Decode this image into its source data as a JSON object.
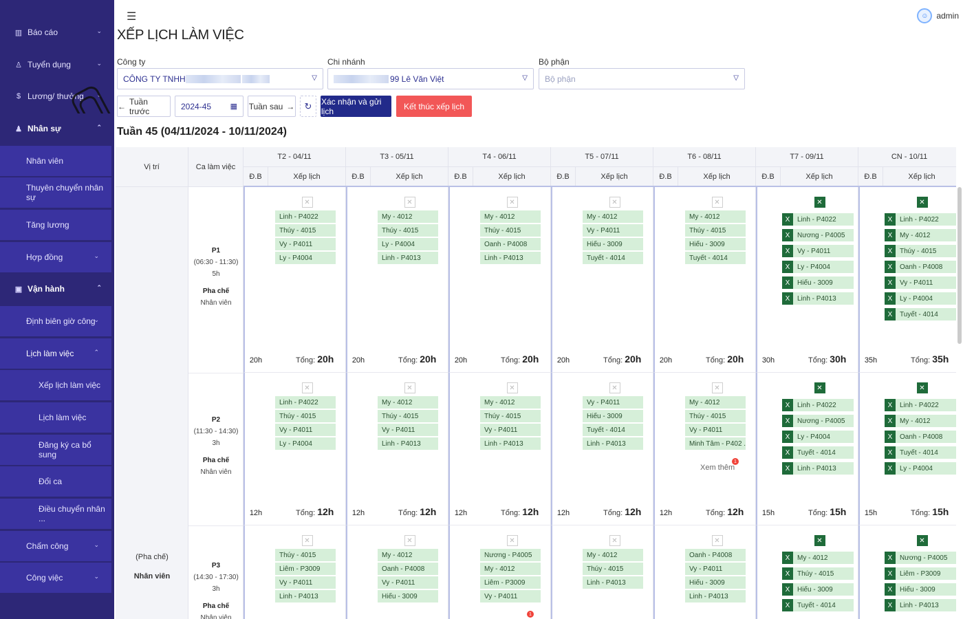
{
  "sidebar": {
    "items": [
      {
        "label": "Báo cáo",
        "icon": "chart-icon",
        "chev": "⌄"
      },
      {
        "label": "Tuyển dụng",
        "icon": "users-icon",
        "chev": "⌄"
      },
      {
        "label": "Lương/ thưởng",
        "icon": "money-icon",
        "chev": "⌄"
      },
      {
        "label": "Nhân sự",
        "icon": "user-icon",
        "chev": "⌃"
      },
      {
        "label": "Nhân viên"
      },
      {
        "label": "Thuyên chuyển nhân sự"
      },
      {
        "label": "Tăng lương"
      },
      {
        "label": "Hợp đồng",
        "chev": "⌄"
      },
      {
        "label": "Vận hành",
        "icon": "calendar-icon",
        "chev": "⌃"
      },
      {
        "label": "Định biên giờ công",
        "chev": "⌄"
      },
      {
        "label": "Lịch làm việc",
        "chev": "⌃"
      },
      {
        "label": "Xếp lịch làm việc"
      },
      {
        "label": "Lịch làm việc"
      },
      {
        "label": "Đăng ký ca bổ sung"
      },
      {
        "label": "Đổi ca"
      },
      {
        "label": "Điều chuyển nhân ..."
      },
      {
        "label": "Chấm công",
        "chev": "⌄"
      },
      {
        "label": "Công việc",
        "chev": "⌄"
      }
    ]
  },
  "header": {
    "menu_icon": "menu-fold-icon",
    "title": "XẾP LỊCH LÀM VIỆC",
    "user": "admin"
  },
  "filters": {
    "company_label": "Công ty",
    "company_value": "CÔNG TY TNHH",
    "branch_label": "Chi nhánh",
    "branch_value": "99 Lê Văn Việt",
    "dept_label": "Bộ phận",
    "dept_placeholder": "Bộ phận"
  },
  "toolbar": {
    "prev": "Tuần trước",
    "week": "2024-45",
    "next": "Tuần sau",
    "confirm": "Xác nhận và gửi lịch",
    "end": "Kết thúc xếp lịch"
  },
  "week_title": "Tuần 45 (04/11/2024 - 10/11/2024)",
  "table": {
    "col_position": "Vị trí",
    "col_shift": "Ca làm việc",
    "sub_db": "Đ.B",
    "sub_schedule": "Xếp lịch",
    "total_label": "Tổng:",
    "more_label": "Xem thêm",
    "more_badge": "1",
    "days": [
      "T2 - 04/11",
      "T3 - 05/11",
      "T4 - 06/11",
      "T5 - 07/11",
      "T6 - 08/11",
      "T7 - 09/11",
      "CN - 10/11"
    ],
    "position": {
      "line1": "(Pha chế)",
      "line2": "Nhân viên"
    }
  },
  "shifts": [
    {
      "code": "P1",
      "time": "(06:30 - 11:30)",
      "hours": "5h",
      "role": "Pha chế",
      "level": "Nhân viên",
      "days": [
        {
          "db": "20h",
          "total": "20h",
          "assigns": [
            "Linh - P4022",
            "Thúy - 4015",
            "Vy - P4011",
            "Ly - P4004"
          ]
        },
        {
          "db": "20h",
          "total": "20h",
          "assigns": [
            "My - 4012",
            "Thúy - 4015",
            "Ly - P4004",
            "Linh - P4013"
          ]
        },
        {
          "db": "20h",
          "total": "20h",
          "assigns": [
            "My - 4012",
            "Thúy - 4015",
            "Oanh - P4008",
            "Linh - P4013"
          ]
        },
        {
          "db": "20h",
          "total": "20h",
          "assigns": [
            "My - 4012",
            "Vy - P4011",
            "Hiếu - 3009",
            "Tuyết - 4014"
          ]
        },
        {
          "db": "20h",
          "total": "20h",
          "assigns": [
            "My - 4012",
            "Thúy - 4015",
            "Hiếu - 3009",
            "Tuyết - 4014"
          ]
        },
        {
          "db": "30h",
          "total": "30h",
          "assigns": [
            "Linh - P4022",
            "Nương - P4005",
            "Vy - P4011",
            "Ly - P4004",
            "Hiếu - 3009",
            "Linh - P4013"
          ]
        },
        {
          "db": "35h",
          "total": "35h",
          "assigns": [
            "Linh - P4022",
            "My - 4012",
            "Thúy - 4015",
            "Oanh - P4008",
            "Vy - P4011",
            "Ly - P4004",
            "Tuyết - 4014"
          ]
        }
      ]
    },
    {
      "code": "P2",
      "time": "(11:30 - 14:30)",
      "hours": "3h",
      "role": "Pha chế",
      "level": "Nhân viên",
      "days": [
        {
          "db": "12h",
          "total": "12h",
          "assigns": [
            "Linh - P4022",
            "Thúy - 4015",
            "Vy - P4011",
            "Ly - P4004"
          ]
        },
        {
          "db": "12h",
          "total": "12h",
          "assigns": [
            "My - 4012",
            "Thúy - 4015",
            "Vy - P4011",
            "Linh - P4013"
          ]
        },
        {
          "db": "12h",
          "total": "12h",
          "assigns": [
            "My - 4012",
            "Thúy - 4015",
            "Vy - P4011",
            "Linh - P4013"
          ]
        },
        {
          "db": "12h",
          "total": "12h",
          "assigns": [
            "Vy - P4011",
            "Hiếu - 3009",
            "Tuyết - 4014",
            "Linh - P4013"
          ]
        },
        {
          "db": "12h",
          "total": "12h",
          "assigns": [
            "My - 4012",
            "Thúy - 4015",
            "Vy - P4011",
            "Minh Tâm - P402 ..."
          ],
          "more": true
        },
        {
          "db": "15h",
          "total": "15h",
          "assigns": [
            "Linh - P4022",
            "Nương - P4005",
            "Ly - P4004",
            "Tuyết - 4014",
            "Linh - P4013"
          ]
        },
        {
          "db": "15h",
          "total": "15h",
          "assigns": [
            "Linh - P4022",
            "My - 4012",
            "Oanh - P4008",
            "Tuyết - 4014",
            "Ly - P4004"
          ]
        }
      ]
    },
    {
      "code": "P3",
      "time": "(14:30 - 17:30)",
      "hours": "3h",
      "role": "Pha chế",
      "level": "Nhân viên",
      "days": [
        {
          "assigns": [
            "Thúy - 4015",
            "Liêm - P3009",
            "Vy - P4011",
            "Linh - P4013"
          ]
        },
        {
          "assigns": [
            "My - 4012",
            "Oanh - P4008",
            "Vy - P4011",
            "Hiếu - 3009"
          ]
        },
        {
          "assigns": [
            "Nương - P4005",
            "My - 4012",
            "Liêm - P3009",
            "Vy - P4011"
          ],
          "badge": true
        },
        {
          "assigns": [
            "My - 4012",
            "Thúy - 4015",
            "Linh - P4013"
          ]
        },
        {
          "assigns": [
            "Oanh - P4008",
            "Vy - P4011",
            "Hiếu - 3009",
            "Linh - P4013"
          ]
        },
        {
          "assigns": [
            "My - 4012",
            "Thúy - 4015",
            "Hiếu - 3009",
            "Tuyết - 4014"
          ]
        },
        {
          "assigns": [
            "Nương - P4005",
            "Liêm - P3009",
            "Hiếu - 3009",
            "Linh - P4013"
          ]
        }
      ]
    }
  ],
  "colors": {
    "sidebar": "#2d2777",
    "primary": "#222a8a",
    "danger": "#f25757",
    "assign_bg": "#d6efd9",
    "assign_x": "#1f6b3a"
  }
}
